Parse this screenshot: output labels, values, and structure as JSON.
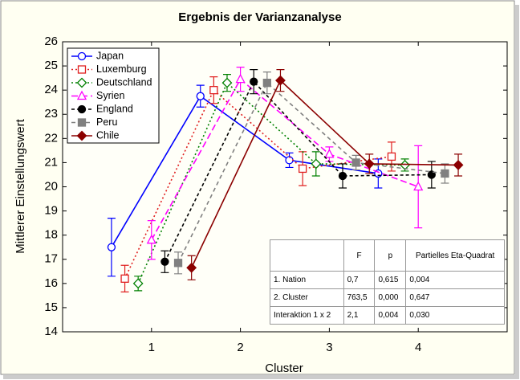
{
  "chart_data": {
    "type": "line",
    "title": "Ergebnis der Varianzanalyse",
    "xlabel": "Cluster",
    "ylabel": "Mittlerer Einstellungswert",
    "xlim": [
      0,
      5
    ],
    "xticks": [
      1,
      2,
      3,
      4
    ],
    "ylim": [
      14,
      26
    ],
    "yticks": [
      14,
      15,
      16,
      17,
      18,
      19,
      20,
      21,
      22,
      23,
      24,
      25,
      26
    ],
    "legend": "upper left",
    "series": [
      {
        "name": "Japan",
        "color": "#0000ff",
        "marker": "circle",
        "filled": false,
        "dash": "",
        "x": [
          0.55,
          1.55,
          2.55,
          3.55
        ],
        "values": [
          17.5,
          23.75,
          21.1,
          20.55
        ],
        "errors": [
          1.2,
          0.45,
          0.3,
          0.6
        ]
      },
      {
        "name": "Luxemburg",
        "color": "#e02020",
        "marker": "square",
        "filled": false,
        "dash": "2,3",
        "x": [
          0.7,
          1.7,
          2.7,
          3.7
        ],
        "values": [
          16.2,
          24.0,
          20.75,
          21.25
        ],
        "errors": [
          0.55,
          0.55,
          0.7,
          0.6
        ]
      },
      {
        "name": "Deutschland",
        "color": "#008000",
        "marker": "diamond",
        "filled": false,
        "dash": "2,3",
        "x": [
          0.85,
          1.85,
          2.85,
          3.85
        ],
        "values": [
          16.0,
          24.3,
          20.95,
          20.9
        ],
        "errors": [
          0.3,
          0.35,
          0.5,
          0.25
        ]
      },
      {
        "name": "Syrien",
        "color": "#ff00ff",
        "marker": "triangle",
        "filled": false,
        "dash": "8,4",
        "x": [
          1.0,
          2.0,
          3.0,
          4.0
        ],
        "values": [
          17.8,
          24.45,
          21.35,
          20.0
        ],
        "errors": [
          0.8,
          0.5,
          0.3,
          1.7
        ]
      },
      {
        "name": "England",
        "color": "#000000",
        "marker": "circle",
        "filled": true,
        "dash": "4,3",
        "x": [
          1.15,
          2.15,
          3.15,
          4.15
        ],
        "values": [
          16.9,
          24.35,
          20.45,
          20.5
        ],
        "errors": [
          0.45,
          0.5,
          0.5,
          0.55
        ]
      },
      {
        "name": "Peru",
        "color": "#808080",
        "marker": "square",
        "filled": true,
        "dash": "5,4",
        "x": [
          1.3,
          2.3,
          3.3,
          4.3
        ],
        "values": [
          16.85,
          24.3,
          21.0,
          20.55
        ],
        "errors": [
          0.45,
          0.45,
          0.3,
          0.4
        ]
      },
      {
        "name": "Chile",
        "color": "#8b0000",
        "marker": "diamond",
        "filled": true,
        "dash": "",
        "x": [
          1.45,
          2.45,
          3.45,
          4.45
        ],
        "values": [
          16.65,
          24.4,
          20.95,
          20.9
        ],
        "errors": [
          0.5,
          0.45,
          0.4,
          0.45
        ]
      }
    ]
  },
  "table": {
    "header": [
      "",
      "F",
      "p",
      "Partielles Eta-Quadrat"
    ],
    "rows": [
      [
        "1. Nation",
        "0,7",
        "0,615",
        "0,004"
      ],
      [
        "2. Cluster",
        "763,5",
        "0,000",
        "0,647"
      ],
      [
        "Interaktion 1 x 2",
        "2,1",
        "0,004",
        "0,030"
      ]
    ]
  }
}
